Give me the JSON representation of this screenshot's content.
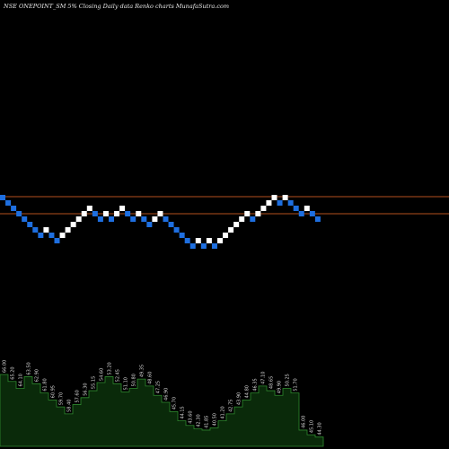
{
  "chart_data": {
    "type": "renko",
    "title": "NSE ONEPOINT_SM 5% Closing Daily data Renko charts MunafaSutra.com",
    "colors": {
      "background": "#000000",
      "up_brick": "#ffffff",
      "down_brick": "#1e6fe0",
      "reference_line": "#b4501e",
      "volume_fill": "#0a2a0a",
      "volume_line": "#2f8a2f",
      "volume_label": "#d8d8d8"
    },
    "grid": false,
    "reference_levels": [
      100,
      97
    ],
    "bricks": [
      {
        "dir": "down",
        "value": 100
      },
      {
        "dir": "down",
        "value": 99
      },
      {
        "dir": "down",
        "value": 98
      },
      {
        "dir": "down",
        "value": 97
      },
      {
        "dir": "down",
        "value": 96
      },
      {
        "dir": "down",
        "value": 95
      },
      {
        "dir": "down",
        "value": 94
      },
      {
        "dir": "down",
        "value": 93
      },
      {
        "dir": "up",
        "value": 94
      },
      {
        "dir": "down",
        "value": 93
      },
      {
        "dir": "down",
        "value": 92
      },
      {
        "dir": "up",
        "value": 93
      },
      {
        "dir": "up",
        "value": 94
      },
      {
        "dir": "up",
        "value": 95
      },
      {
        "dir": "up",
        "value": 96
      },
      {
        "dir": "up",
        "value": 97
      },
      {
        "dir": "up",
        "value": 98
      },
      {
        "dir": "down",
        "value": 97
      },
      {
        "dir": "down",
        "value": 96
      },
      {
        "dir": "up",
        "value": 97
      },
      {
        "dir": "down",
        "value": 96
      },
      {
        "dir": "up",
        "value": 97
      },
      {
        "dir": "up",
        "value": 98
      },
      {
        "dir": "down",
        "value": 97
      },
      {
        "dir": "down",
        "value": 96
      },
      {
        "dir": "up",
        "value": 97
      },
      {
        "dir": "down",
        "value": 96
      },
      {
        "dir": "down",
        "value": 95
      },
      {
        "dir": "up",
        "value": 96
      },
      {
        "dir": "up",
        "value": 97
      },
      {
        "dir": "down",
        "value": 96
      },
      {
        "dir": "down",
        "value": 95
      },
      {
        "dir": "down",
        "value": 94
      },
      {
        "dir": "down",
        "value": 93
      },
      {
        "dir": "down",
        "value": 92
      },
      {
        "dir": "down",
        "value": 91
      },
      {
        "dir": "up",
        "value": 92
      },
      {
        "dir": "down",
        "value": 91
      },
      {
        "dir": "up",
        "value": 92
      },
      {
        "dir": "down",
        "value": 91
      },
      {
        "dir": "up",
        "value": 92
      },
      {
        "dir": "up",
        "value": 93
      },
      {
        "dir": "up",
        "value": 94
      },
      {
        "dir": "up",
        "value": 95
      },
      {
        "dir": "up",
        "value": 96
      },
      {
        "dir": "up",
        "value": 97
      },
      {
        "dir": "down",
        "value": 96
      },
      {
        "dir": "up",
        "value": 97
      },
      {
        "dir": "up",
        "value": 98
      },
      {
        "dir": "up",
        "value": 99
      },
      {
        "dir": "up",
        "value": 100
      },
      {
        "dir": "down",
        "value": 99
      },
      {
        "dir": "up",
        "value": 100
      },
      {
        "dir": "down",
        "value": 99
      },
      {
        "dir": "down",
        "value": 98
      },
      {
        "dir": "down",
        "value": 97
      },
      {
        "dir": "up",
        "value": 98
      },
      {
        "dir": "down",
        "value": 97
      },
      {
        "dir": "down",
        "value": 96
      }
    ],
    "volume_bars": [
      {
        "value": 62,
        "label": "66.00"
      },
      {
        "value": 56,
        "label": "65.20"
      },
      {
        "value": 50,
        "label": "64.10"
      },
      {
        "value": 60,
        "label": "63.50"
      },
      {
        "value": 54,
        "label": "62.90"
      },
      {
        "value": 46,
        "label": "61.80"
      },
      {
        "value": 40,
        "label": "60.95"
      },
      {
        "value": 34,
        "label": "59.70"
      },
      {
        "value": 28,
        "label": "58.40"
      },
      {
        "value": 36,
        "label": "57.60"
      },
      {
        "value": 42,
        "label": "56.30"
      },
      {
        "value": 48,
        "label": "55.15"
      },
      {
        "value": 55,
        "label": "54.60"
      },
      {
        "value": 60,
        "label": "53.20"
      },
      {
        "value": 54,
        "label": "52.45"
      },
      {
        "value": 47,
        "label": "51.10"
      },
      {
        "value": 50,
        "label": "50.80"
      },
      {
        "value": 58,
        "label": "49.35"
      },
      {
        "value": 52,
        "label": "48.60"
      },
      {
        "value": 44,
        "label": "47.25"
      },
      {
        "value": 38,
        "label": "46.90"
      },
      {
        "value": 30,
        "label": "45.70"
      },
      {
        "value": 22,
        "label": "44.15"
      },
      {
        "value": 18,
        "label": "43.60"
      },
      {
        "value": 15,
        "label": "42.30"
      },
      {
        "value": 14,
        "label": "41.85"
      },
      {
        "value": 16,
        "label": "40.50"
      },
      {
        "value": 22,
        "label": "41.20"
      },
      {
        "value": 28,
        "label": "42.75"
      },
      {
        "value": 34,
        "label": "43.90"
      },
      {
        "value": 40,
        "label": "44.80"
      },
      {
        "value": 46,
        "label": "46.35"
      },
      {
        "value": 52,
        "label": "47.10"
      },
      {
        "value": 48,
        "label": "48.65"
      },
      {
        "value": 44,
        "label": "49.90"
      },
      {
        "value": 50,
        "label": "50.25"
      },
      {
        "value": 46,
        "label": "51.70"
      },
      {
        "value": 14,
        "label": "46.00"
      },
      {
        "value": 10,
        "label": "45.10"
      },
      {
        "value": 8,
        "label": "44.30"
      }
    ]
  }
}
